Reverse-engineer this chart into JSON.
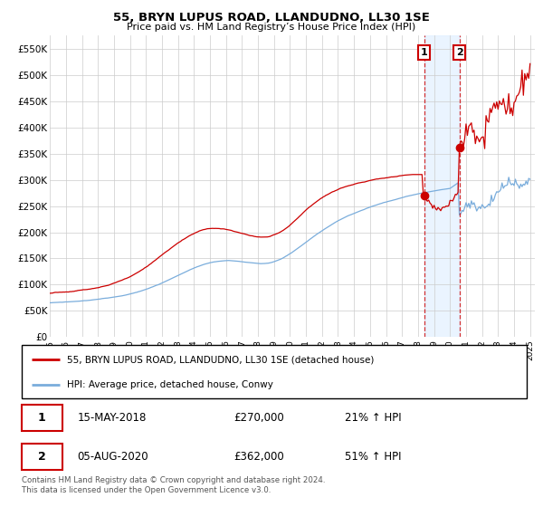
{
  "title": "55, BRYN LUPUS ROAD, LLANDUDNO, LL30 1SE",
  "subtitle": "Price paid vs. HM Land Registry’s House Price Index (HPI)",
  "legend_line1": "55, BRYN LUPUS ROAD, LLANDUDNO, LL30 1SE (detached house)",
  "legend_line2": "HPI: Average price, detached house, Conwy",
  "annotation1_date": "15-MAY-2018",
  "annotation1_price": "£270,000",
  "annotation1_pct": "21% ↑ HPI",
  "annotation2_date": "05-AUG-2020",
  "annotation2_price": "£362,000",
  "annotation2_pct": "51% ↑ HPI",
  "footer": "Contains HM Land Registry data © Crown copyright and database right 2024.\nThis data is licensed under the Open Government Licence v3.0.",
  "red_color": "#cc0000",
  "blue_color": "#7aaddc",
  "shade_color": "#ddeeff",
  "annotation_box_color": "#cc0000",
  "background_color": "#ffffff",
  "grid_color": "#cccccc",
  "ylim": [
    0,
    575000
  ],
  "yticks": [
    0,
    50000,
    100000,
    150000,
    200000,
    250000,
    300000,
    350000,
    400000,
    450000,
    500000,
    550000
  ],
  "xstart_year": 1995,
  "xend_year": 2025,
  "sale1_year": 2018.375,
  "sale1_price": 270000,
  "sale2_year": 2020.583,
  "sale2_price": 362000
}
